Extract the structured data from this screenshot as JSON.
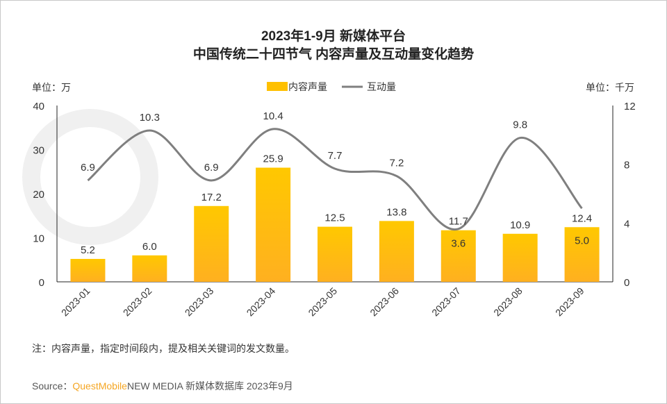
{
  "chart_data": {
    "type": "bar+line",
    "title": "2023年1-9月 新媒体平台",
    "subtitle": "中国传统二十四节气 内容声量及互动量变化趋势",
    "left_unit": "单位：万",
    "right_unit": "单位：千万",
    "categories": [
      "2023-01",
      "2023-02",
      "2023-03",
      "2023-04",
      "2023-05",
      "2023-06",
      "2023-07",
      "2023-08",
      "2023-09"
    ],
    "series": [
      {
        "name": "内容声量",
        "type": "bar",
        "axis": "left",
        "color": "#FFC000",
        "values": [
          5.2,
          6.0,
          17.2,
          25.9,
          12.5,
          13.8,
          11.7,
          10.9,
          12.4
        ]
      },
      {
        "name": "互动量",
        "type": "line",
        "axis": "right",
        "color": "#7F7F7F",
        "values": [
          6.9,
          10.3,
          6.9,
          10.4,
          7.7,
          7.2,
          3.6,
          9.8,
          5.0
        ]
      }
    ],
    "left_axis": {
      "range": [
        0,
        40
      ],
      "ticks": [
        0,
        10,
        20,
        30,
        40
      ]
    },
    "right_axis": {
      "range": [
        0,
        12
      ],
      "ticks": [
        0,
        4,
        8,
        12
      ]
    },
    "legend_placement": "top-center",
    "grid": false
  },
  "note": "注：内容声量，指定时间段内，提及相关关键词的发文数量。",
  "source": {
    "label": "Source：",
    "brand": "QuestMobile",
    "rest": "NEW MEDIA 新媒体数据库 2023年9月",
    "brand_color": "#F5A623"
  },
  "watermark": "QUESTMOBILE"
}
